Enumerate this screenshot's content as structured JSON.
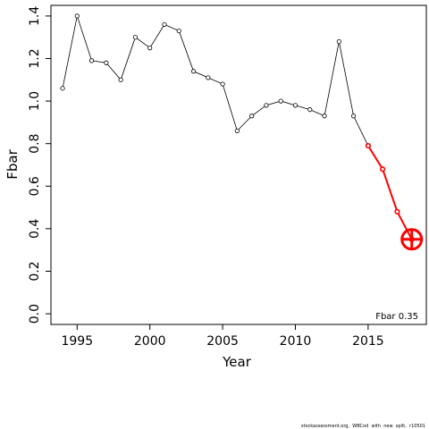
{
  "chart_data": {
    "type": "line",
    "xlabel": "Year",
    "ylabel": "Fbar",
    "xlim": [
      1993.2,
      2019.0
    ],
    "ylim": [
      -0.05,
      1.45
    ],
    "x_ticks": [
      1995,
      2000,
      2005,
      2010,
      2015
    ],
    "y_ticks": [
      0.0,
      0.2,
      0.4,
      0.6,
      0.8,
      1.0,
      1.2,
      1.4
    ],
    "x_tick_labels": [
      "1995",
      "2000",
      "2005",
      "2010",
      "2015"
    ],
    "y_tick_labels": [
      "0.0",
      "0.2",
      "0.4",
      "0.6",
      "0.8",
      "1.0",
      "1.2",
      "1.4"
    ],
    "series": [
      {
        "style": "black line with open circles",
        "color": "#000000",
        "x": [
          1994,
          1995,
          1996,
          1997,
          1998,
          1999,
          2000,
          2001,
          2002,
          2003,
          2004,
          2005,
          2006,
          2007,
          2008,
          2009,
          2010,
          2011,
          2012,
          2013,
          2014,
          2015
        ],
        "y": [
          1.06,
          1.4,
          1.19,
          1.18,
          1.1,
          1.3,
          1.25,
          1.36,
          1.33,
          1.14,
          1.11,
          1.08,
          0.86,
          0.93,
          0.98,
          1.0,
          0.98,
          0.96,
          0.93,
          1.28,
          0.93,
          0.79
        ]
      },
      {
        "style": "red projection line with open circles",
        "color": "#ff0000",
        "x": [
          2015,
          2016,
          2017,
          2018
        ],
        "y": [
          0.79,
          0.68,
          0.48,
          0.35
        ]
      }
    ],
    "highlight": {
      "x": 2018,
      "y": 0.35,
      "marker": "circle-plus",
      "color": "#ff0000"
    },
    "annotation": "Fbar 0.35",
    "grid": false,
    "legend": "none"
  },
  "footer": "stockassessment.org,  WBCod  with  new  split,  r10501"
}
